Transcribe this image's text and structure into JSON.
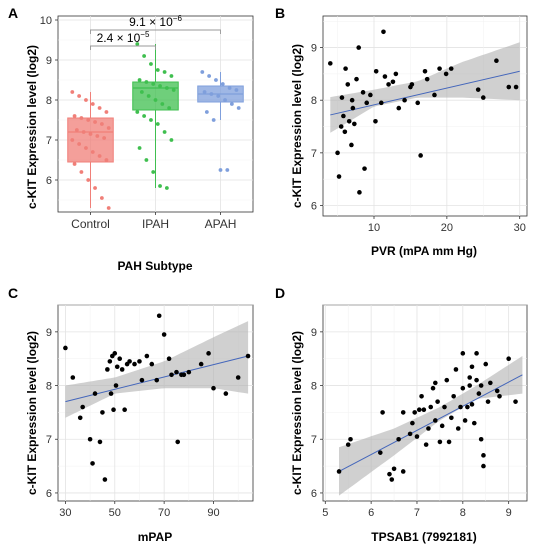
{
  "figure": {
    "panels": [
      {
        "letter": "A",
        "ylabel": "c-KIT Expression level (log2)",
        "xlabel": "PAH Subtype"
      },
      {
        "letter": "B",
        "ylabel": "c-KIT Expression level (log2)",
        "xlabel": "PVR (mPA mm Hg)"
      },
      {
        "letter": "C",
        "ylabel": "c-KIT Expression level (log2)",
        "xlabel": "mPAP"
      },
      {
        "letter": "D",
        "ylabel": "c-KIT Expression level (log2)",
        "xlabel": "TPSAB1 (7992181)"
      }
    ]
  },
  "chart_data": [
    {
      "panel": "A",
      "type": "box",
      "xlabel": "PAH Subtype",
      "ylabel": "c-KIT Expression level (log2)",
      "ylim": [
        5.2,
        10.1
      ],
      "yticks": [
        6,
        7,
        8,
        9,
        10
      ],
      "grid": true,
      "categories": [
        "Control",
        "IPAH",
        "APAH"
      ],
      "colors": [
        "#f07f78",
        "#3fbf4f",
        "#7f9fdc"
      ],
      "boxes": [
        {
          "name": "Control",
          "q1": 6.45,
          "median": 7.2,
          "q3": 7.55,
          "whisker_low": 5.3,
          "whisker_high": 8.2,
          "points": [
            8.2,
            8.1,
            8.0,
            7.9,
            7.8,
            7.7,
            7.6,
            7.55,
            7.5,
            7.45,
            7.4,
            7.3,
            7.25,
            7.2,
            7.15,
            7.1,
            7.05,
            7.0,
            6.9,
            6.8,
            6.7,
            6.6,
            6.5,
            6.4,
            6.2,
            6.0,
            5.8,
            5.55,
            5.3
          ]
        },
        {
          "name": "IPAH",
          "q1": 7.75,
          "median": 8.3,
          "q3": 8.45,
          "whisker_low": 5.8,
          "whisker_high": 9.4,
          "points": [
            9.4,
            9.1,
            8.9,
            8.75,
            8.7,
            8.6,
            8.5,
            8.45,
            8.4,
            8.35,
            8.3,
            8.25,
            8.2,
            8.1,
            8.0,
            7.9,
            7.8,
            7.7,
            7.6,
            7.5,
            7.4,
            7.2,
            7.0,
            6.8,
            6.5,
            6.2,
            5.85,
            5.8
          ]
        },
        {
          "name": "APAH",
          "q1": 7.95,
          "median": 8.15,
          "q3": 8.35,
          "whisker_low": 7.5,
          "whisker_high": 8.7,
          "points": [
            8.7,
            8.6,
            8.5,
            8.4,
            8.3,
            8.25,
            8.2,
            8.15,
            8.1,
            8.0,
            7.9,
            7.8,
            7.7,
            7.5,
            6.25,
            6.25
          ]
        }
      ],
      "annotations": [
        {
          "text": "2.4 × 10",
          "exp": "−5",
          "from": "Control",
          "to": "IPAH",
          "y": 9.35
        },
        {
          "text": "9.1 × 10",
          "exp": "−6",
          "from": "Control",
          "to": "APAH",
          "y": 9.75
        }
      ]
    },
    {
      "panel": "B",
      "type": "scatter",
      "xlabel": "PVR (mPA mm Hg)",
      "ylabel": "c-KIT Expression level (log2)",
      "xlim": [
        3,
        31
      ],
      "ylim": [
        5.8,
        9.6
      ],
      "xticks": [
        10,
        20,
        30
      ],
      "yticks": [
        6,
        7,
        8,
        9
      ],
      "grid": true,
      "points": [
        [
          4.0,
          8.7
        ],
        [
          5.0,
          7.0
        ],
        [
          5.2,
          6.55
        ],
        [
          5.5,
          7.5
        ],
        [
          5.6,
          8.05
        ],
        [
          5.8,
          7.7
        ],
        [
          6.0,
          7.4
        ],
        [
          6.1,
          8.6
        ],
        [
          6.4,
          8.3
        ],
        [
          6.6,
          7.6
        ],
        [
          6.9,
          7.15
        ],
        [
          7.0,
          8.0
        ],
        [
          7.1,
          7.85
        ],
        [
          7.3,
          7.55
        ],
        [
          7.6,
          8.4
        ],
        [
          7.9,
          9.0
        ],
        [
          8.0,
          6.25
        ],
        [
          8.5,
          8.15
        ],
        [
          8.7,
          6.7
        ],
        [
          9.0,
          7.95
        ],
        [
          9.5,
          8.1
        ],
        [
          10.2,
          7.6
        ],
        [
          10.3,
          8.55
        ],
        [
          11.0,
          7.95
        ],
        [
          11.3,
          9.3
        ],
        [
          11.5,
          8.45
        ],
        [
          12.0,
          8.3
        ],
        [
          12.6,
          8.35
        ],
        [
          13.0,
          8.5
        ],
        [
          13.4,
          7.85
        ],
        [
          14.2,
          8.0
        ],
        [
          15.0,
          8.25
        ],
        [
          15.2,
          8.3
        ],
        [
          16.0,
          7.95
        ],
        [
          16.4,
          6.95
        ],
        [
          17.0,
          8.55
        ],
        [
          17.3,
          8.4
        ],
        [
          18.3,
          8.1
        ],
        [
          19.0,
          8.6
        ],
        [
          19.9,
          8.5
        ],
        [
          20.6,
          8.6
        ],
        [
          24.3,
          8.2
        ],
        [
          25.0,
          8.05
        ],
        [
          26.8,
          8.75
        ],
        [
          28.5,
          8.25
        ],
        [
          29.5,
          8.25
        ]
      ],
      "fit": {
        "x": [
          4,
          30
        ],
        "y": [
          7.72,
          8.55
        ]
      },
      "band": {
        "x": [
          4,
          10,
          16,
          22,
          30
        ],
        "low": [
          7.38,
          7.88,
          8.05,
          8.05,
          8.0
        ],
        "high": [
          8.06,
          8.2,
          8.36,
          8.72,
          9.1
        ]
      }
    },
    {
      "panel": "C",
      "type": "scatter",
      "xlabel": "mPAP",
      "ylabel": "c-KIT Expression level (log2)",
      "xlim": [
        27,
        106
      ],
      "ylim": [
        5.85,
        9.5
      ],
      "xticks": [
        30,
        50,
        70,
        90
      ],
      "yticks": [
        6,
        7,
        8,
        9
      ],
      "grid": true,
      "points": [
        [
          30,
          8.7
        ],
        [
          33,
          8.15
        ],
        [
          36,
          7.4
        ],
        [
          37,
          7.6
        ],
        [
          40,
          7.0
        ],
        [
          41,
          6.55
        ],
        [
          42,
          7.85
        ],
        [
          44,
          6.95
        ],
        [
          45,
          7.5
        ],
        [
          46,
          6.25
        ],
        [
          47,
          8.3
        ],
        [
          48,
          8.45
        ],
        [
          48.5,
          7.85
        ],
        [
          49,
          8.55
        ],
        [
          49.5,
          7.55
        ],
        [
          50,
          8.6
        ],
        [
          50.5,
          8.0
        ],
        [
          51,
          8.35
        ],
        [
          52,
          8.5
        ],
        [
          53,
          8.3
        ],
        [
          54,
          7.55
        ],
        [
          55,
          8.4
        ],
        [
          56,
          8.45
        ],
        [
          58,
          8.4
        ],
        [
          60,
          8.45
        ],
        [
          61,
          8.1
        ],
        [
          63,
          8.55
        ],
        [
          65,
          8.4
        ],
        [
          67,
          8.1
        ],
        [
          68,
          9.3
        ],
        [
          70,
          8.95
        ],
        [
          72,
          8.5
        ],
        [
          73,
          8.2
        ],
        [
          75,
          8.25
        ],
        [
          75.5,
          6.95
        ],
        [
          77,
          8.2
        ],
        [
          78,
          8.2
        ],
        [
          80,
          8.25
        ],
        [
          85,
          8.4
        ],
        [
          88,
          8.6
        ],
        [
          90,
          7.95
        ],
        [
          95,
          7.85
        ],
        [
          100,
          8.15
        ],
        [
          104,
          8.55
        ]
      ],
      "fit": {
        "x": [
          30,
          104
        ],
        "y": [
          7.7,
          8.55
        ]
      },
      "band": {
        "x": [
          30,
          50,
          70,
          90,
          104
        ],
        "low": [
          7.4,
          7.85,
          7.95,
          7.95,
          7.85
        ],
        "high": [
          8.0,
          8.15,
          8.45,
          8.9,
          9.2
        ]
      }
    },
    {
      "panel": "D",
      "type": "scatter",
      "xlabel": "TPSAB1 (7992181)",
      "ylabel": "c-KIT Expression level (log2)",
      "xlim": [
        4.95,
        9.4
      ],
      "ylim": [
        5.85,
        9.5
      ],
      "xticks": [
        5,
        6,
        7,
        8,
        9
      ],
      "yticks": [
        6,
        7,
        8,
        9
      ],
      "grid": true,
      "points": [
        [
          5.3,
          6.4
        ],
        [
          5.5,
          6.9
        ],
        [
          5.55,
          7.0
        ],
        [
          6.2,
          6.75
        ],
        [
          6.25,
          7.5
        ],
        [
          6.4,
          6.35
        ],
        [
          6.45,
          6.25
        ],
        [
          6.5,
          6.45
        ],
        [
          6.6,
          7.0
        ],
        [
          6.7,
          6.4
        ],
        [
          6.7,
          7.5
        ],
        [
          6.85,
          7.1
        ],
        [
          6.9,
          7.3
        ],
        [
          6.95,
          7.5
        ],
        [
          7.0,
          7.05
        ],
        [
          7.05,
          7.55
        ],
        [
          7.1,
          7.8
        ],
        [
          7.15,
          7.55
        ],
        [
          7.2,
          6.9
        ],
        [
          7.25,
          7.2
        ],
        [
          7.3,
          7.6
        ],
        [
          7.35,
          7.95
        ],
        [
          7.4,
          7.35
        ],
        [
          7.4,
          8.05
        ],
        [
          7.45,
          7.7
        ],
        [
          7.5,
          6.95
        ],
        [
          7.55,
          7.25
        ],
        [
          7.6,
          7.6
        ],
        [
          7.65,
          8.1
        ],
        [
          7.7,
          6.95
        ],
        [
          7.75,
          7.4
        ],
        [
          7.8,
          7.8
        ],
        [
          7.85,
          8.3
        ],
        [
          7.9,
          7.2
        ],
        [
          7.95,
          7.6
        ],
        [
          8.0,
          8.6
        ],
        [
          8.0,
          7.95
        ],
        [
          8.05,
          7.35
        ],
        [
          8.1,
          7.6
        ],
        [
          8.15,
          8.0
        ],
        [
          8.15,
          8.15
        ],
        [
          8.2,
          7.65
        ],
        [
          8.2,
          8.35
        ],
        [
          8.25,
          7.3
        ],
        [
          8.3,
          8.6
        ],
        [
          8.3,
          8.1
        ],
        [
          8.35,
          7.85
        ],
        [
          8.4,
          8.0
        ],
        [
          8.4,
          7.0
        ],
        [
          8.45,
          6.5
        ],
        [
          8.45,
          6.7
        ],
        [
          8.5,
          8.4
        ],
        [
          8.55,
          7.7
        ],
        [
          8.6,
          8.05
        ],
        [
          8.75,
          7.9
        ],
        [
          8.8,
          7.8
        ],
        [
          9.0,
          8.5
        ],
        [
          9.15,
          7.7
        ]
      ],
      "fit": {
        "x": [
          5.3,
          9.3
        ],
        "y": [
          6.4,
          8.2
        ]
      },
      "band": {
        "x": [
          5.3,
          6.5,
          7.5,
          8.3,
          9.3
        ],
        "low": [
          5.95,
          6.7,
          7.35,
          7.75,
          7.85
        ],
        "high": [
          6.85,
          7.2,
          7.6,
          8.0,
          8.55
        ]
      }
    }
  ]
}
